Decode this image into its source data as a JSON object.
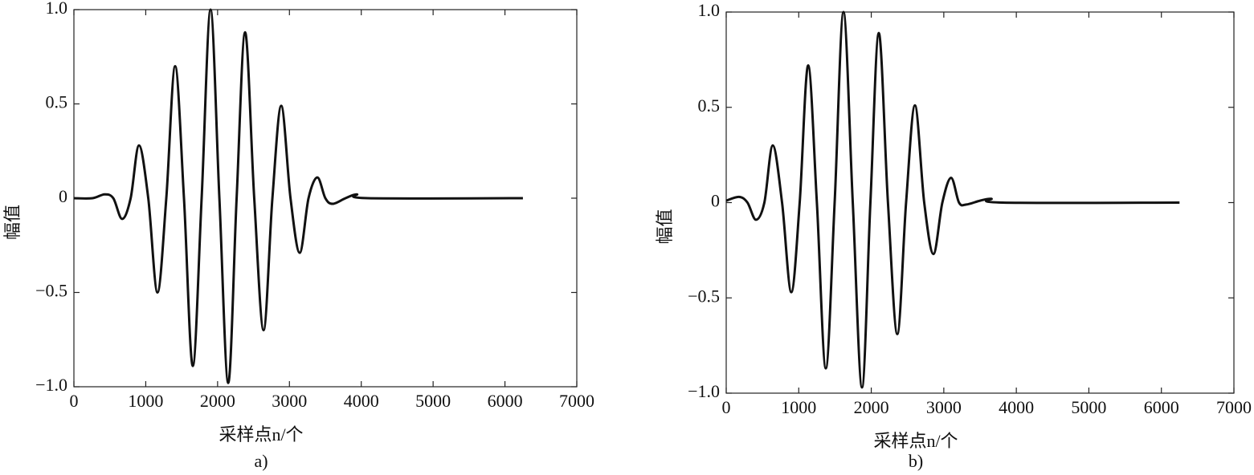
{
  "chart_data": [
    {
      "type": "line",
      "ylabel": "幅值",
      "xlabel": "采样点n/个",
      "caption": "a)",
      "xlim": [
        0,
        7000
      ],
      "ylim": [
        -1,
        1
      ],
      "xticks": [
        0,
        1000,
        2000,
        3000,
        4000,
        5000,
        6000,
        7000
      ],
      "yticks": [
        {
          "value": -1,
          "label": "−1.0"
        },
        {
          "value": -0.5,
          "label": "−0.5"
        },
        0,
        0.5,
        {
          "value": 1,
          "label": "1.0"
        }
      ],
      "series": [
        {
          "color": "#111111",
          "x": [
            0,
            260,
            425,
            548,
            671,
            790,
            906,
            1035,
            1163,
            1286,
            1409,
            1532,
            1655,
            1778,
            1902,
            2025,
            2148,
            2265,
            2383,
            2510,
            2640,
            2763,
            2886,
            3015,
            3143,
            3266,
            3389,
            3500,
            3602,
            3781,
            3937,
            4094,
            6250
          ],
          "values": [
            0,
            0,
            0.02,
            0,
            -0.11,
            0,
            0.28,
            0,
            -0.5,
            0,
            0.7,
            0,
            -0.89,
            0,
            1.0,
            0,
            -0.98,
            0,
            0.88,
            0,
            -0.7,
            0,
            0.49,
            0,
            -0.29,
            0,
            0.11,
            0,
            -0.03,
            0,
            0.02,
            0,
            0
          ]
        }
      ]
    },
    {
      "type": "line",
      "ylabel": "幅值",
      "xlabel": "采样点n/个",
      "caption": "b)",
      "xlim": [
        0,
        7000
      ],
      "ylim": [
        -1,
        1
      ],
      "xticks": [
        0,
        1000,
        2000,
        3000,
        4000,
        5000,
        6000,
        7000
      ],
      "yticks": [
        {
          "value": -1,
          "label": "−1.0"
        },
        {
          "value": -0.5,
          "label": "−0.5"
        },
        0,
        0.5,
        {
          "value": 1,
          "label": "1.0"
        }
      ],
      "series": [
        {
          "color": "#111111",
          "x": [
            0,
            177,
            293,
            410,
            526,
            642,
            770,
            897,
            1013,
            1130,
            1250,
            1373,
            1495,
            1617,
            1745,
            1872,
            1988,
            2104,
            2230,
            2359,
            2480,
            2602,
            2730,
            2857,
            2980,
            3101,
            3210,
            3311,
            3500,
            3654,
            3810,
            6250
          ],
          "values": [
            0.01,
            0.03,
            0,
            -0.09,
            0,
            0.3,
            0,
            -0.47,
            0,
            0.72,
            0,
            -0.87,
            0,
            1.0,
            0,
            -0.97,
            0,
            0.89,
            0,
            -0.69,
            0,
            0.51,
            0,
            -0.27,
            0,
            0.13,
            0,
            -0.01,
            0.01,
            0.02,
            0,
            0
          ]
        }
      ]
    }
  ]
}
